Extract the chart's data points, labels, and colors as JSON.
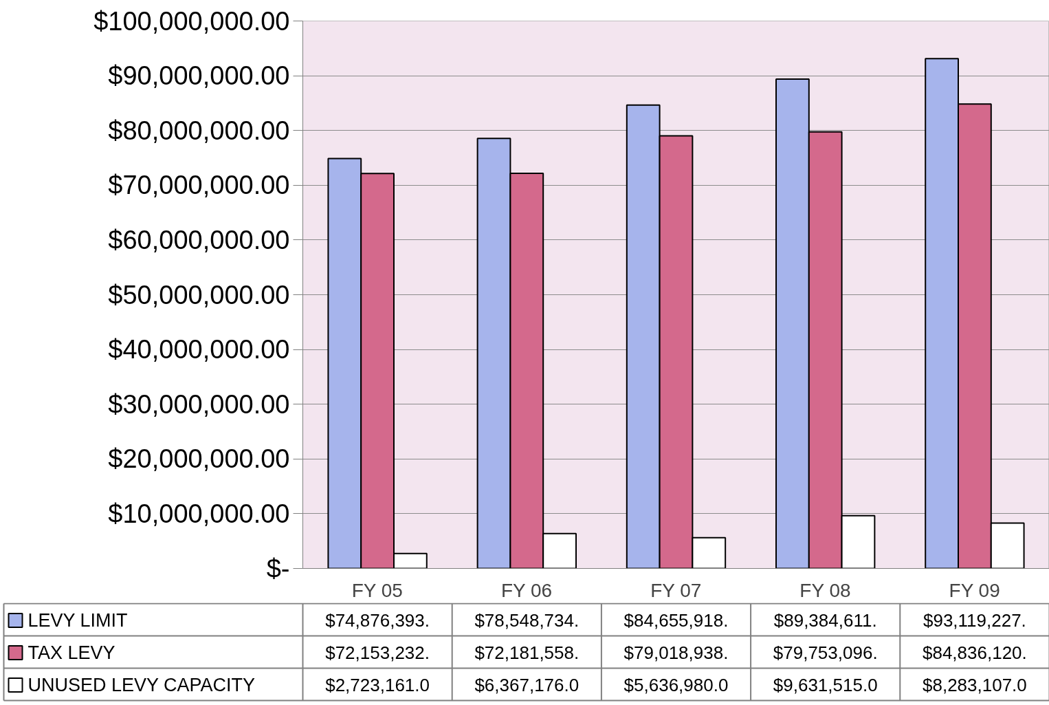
{
  "chart_data": {
    "type": "bar",
    "categories": [
      "FY 05",
      "FY 06",
      "FY 07",
      "FY 08",
      "FY 09"
    ],
    "series": [
      {
        "name": "LEVY LIMIT",
        "color": "#a6b4ec",
        "values": [
          74876393,
          78548734,
          84655918,
          89384611,
          93119227
        ],
        "value_labels": [
          "$74,876,393.",
          "$78,548,734.",
          "$84,655,918.",
          "$89,384,611.",
          "$93,119,227."
        ]
      },
      {
        "name": "TAX LEVY",
        "color": "#d4698c",
        "values": [
          72153232,
          72181558,
          79018938,
          79753096,
          84836120
        ],
        "value_labels": [
          "$72,153,232.",
          "$72,181,558.",
          "$79,018,938.",
          "$79,753,096.",
          "$84,836,120."
        ]
      },
      {
        "name": "UNUSED LEVY CAPACITY",
        "color": "#ffffff",
        "values": [
          2723161,
          6367176,
          5636980,
          9631515,
          8283107
        ],
        "value_labels": [
          "$2,723,161.0",
          "$6,367,176.0",
          "$5,636,980.0",
          "$9,631,515.0",
          "$8,283,107.0"
        ]
      }
    ],
    "ylim": [
      0,
      100000000
    ],
    "yticks": [
      {
        "value": 0,
        "label": "$-"
      },
      {
        "value": 10000000,
        "label": "$10,000,000.00"
      },
      {
        "value": 20000000,
        "label": "$20,000,000.00"
      },
      {
        "value": 30000000,
        "label": "$30,000,000.00"
      },
      {
        "value": 40000000,
        "label": "$40,000,000.00"
      },
      {
        "value": 50000000,
        "label": "$50,000,000.00"
      },
      {
        "value": 60000000,
        "label": "$60,000,000.00"
      },
      {
        "value": 70000000,
        "label": "$70,000,000.00"
      },
      {
        "value": 80000000,
        "label": "$80,000,000.00"
      },
      {
        "value": 90000000,
        "label": "$90,000,000.00"
      },
      {
        "value": 100000000,
        "label": "$100,000,000.00"
      }
    ],
    "grid": "y",
    "legend": "bottom"
  }
}
